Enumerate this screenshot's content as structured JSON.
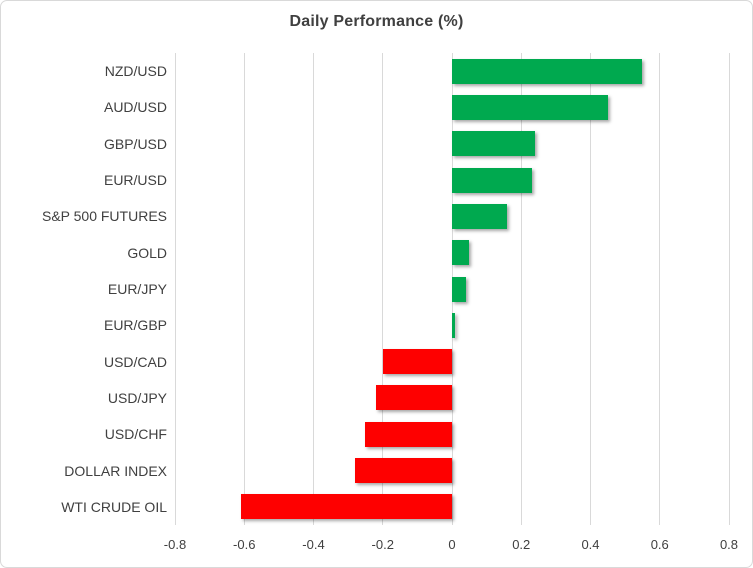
{
  "header": {
    "title": "Daily Performance (%)"
  },
  "chart_data": {
    "type": "bar",
    "orientation": "horizontal",
    "title": "Daily Performance (%)",
    "categories": [
      "NZD/USD",
      "AUD/USD",
      "GBP/USD",
      "EUR/USD",
      "S&P 500 FUTURES",
      "GOLD",
      "EUR/JPY",
      "EUR/GBP",
      "USD/CAD",
      "USD/JPY",
      "USD/CHF",
      "DOLLAR INDEX",
      "WTI CRUDE OIL"
    ],
    "values": [
      0.55,
      0.45,
      0.24,
      0.23,
      0.16,
      0.05,
      0.04,
      0.01,
      -0.2,
      -0.22,
      -0.25,
      -0.28,
      -0.61
    ],
    "xlabel": "",
    "ylabel": "",
    "xlim": [
      -0.8,
      0.8
    ],
    "xtick_values": [
      -0.8,
      -0.6,
      -0.4,
      -0.2,
      0,
      0.2,
      0.4,
      0.6,
      0.8
    ],
    "xtick_labels": [
      "-0.8",
      "-0.6",
      "-0.4",
      "-0.2",
      "0",
      "0.2",
      "0.4",
      "0.6",
      "0.8"
    ],
    "grid": "vertical-gridlines-on",
    "legend": "none",
    "colors": {
      "positive_bar": "#00A94F",
      "negative_bar": "#FE0000",
      "gridline": "#D9D9D9",
      "axis_text": "#404040",
      "title_text": "#404040",
      "chart_border": "#D9D9D9",
      "background": "#FFFFFF"
    }
  }
}
